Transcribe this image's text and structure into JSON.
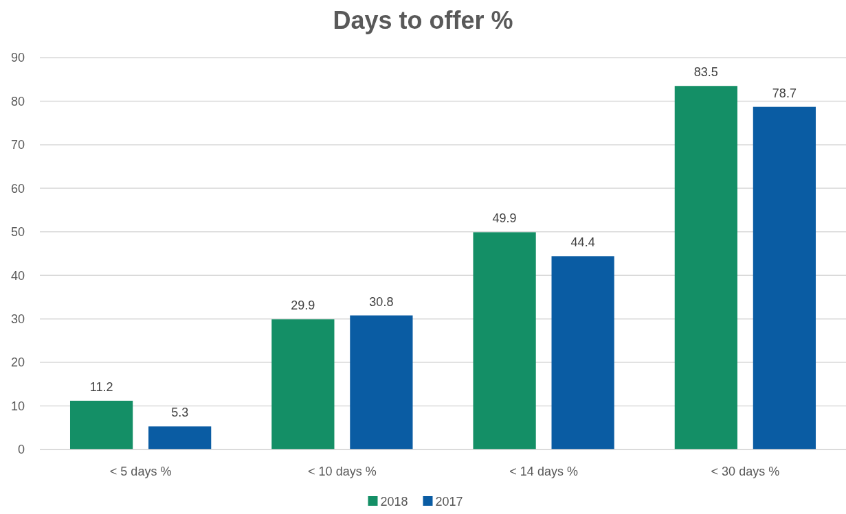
{
  "chart_data": {
    "type": "bar",
    "title": "Days to offer %",
    "categories": [
      "< 5 days %",
      "< 10 days %",
      "< 14 days %",
      "< 30 days %"
    ],
    "series": [
      {
        "name": "2018",
        "color": "#148f66",
        "values": [
          11.2,
          29.9,
          49.9,
          83.5
        ]
      },
      {
        "name": "2017",
        "color": "#0a5ca3",
        "values": [
          5.3,
          30.8,
          44.4,
          78.7
        ]
      }
    ],
    "ylim": [
      0,
      90
    ],
    "yticks": [
      0,
      10,
      20,
      30,
      40,
      50,
      60,
      70,
      80,
      90
    ],
    "grid": "y",
    "legend": "bottom",
    "data_labels": true
  }
}
